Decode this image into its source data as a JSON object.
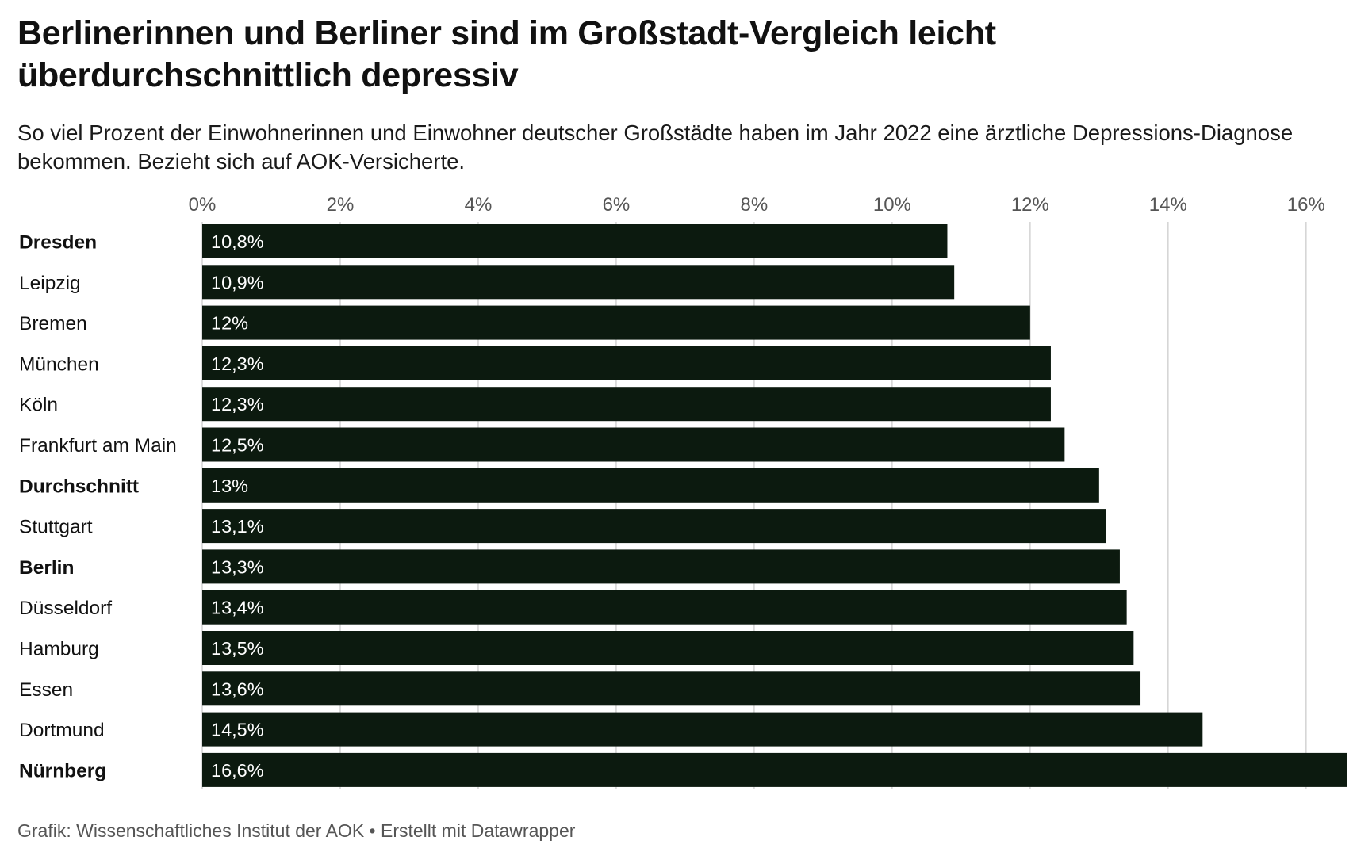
{
  "header": {
    "title": "Berlinerinnen und Berliner sind im Großstadt-Vergleich leicht überdurchschnittlich depressiv",
    "subtitle": "So viel Prozent der Einwohnerinnen und Einwohner deutscher Großstädte haben im Jahr 2022 eine ärztliche Depressions-Diagnose bekommen. Bezieht sich auf AOK-Versicherte."
  },
  "footer": {
    "source": "Grafik: Wissenschaftliches Institut der AOK • Erstellt mit Datawrapper"
  },
  "colors": {
    "bar": "#0c1a0f",
    "grid": "#d3d3d3",
    "value_label": "#ffffff"
  },
  "chart_data": {
    "type": "bar",
    "orientation": "horizontal",
    "categories": [
      "Dresden",
      "Leipzig",
      "Bremen",
      "München",
      "Köln",
      "Frankfurt am Main",
      "Durchschnitt",
      "Stuttgart",
      "Berlin",
      "Düsseldorf",
      "Hamburg",
      "Essen",
      "Dortmund",
      "Nürnberg"
    ],
    "bold_categories": [
      "Dresden",
      "Durchschnitt",
      "Berlin",
      "Nürnberg"
    ],
    "values": [
      10.8,
      10.9,
      12,
      12.3,
      12.3,
      12.5,
      13,
      13.1,
      13.3,
      13.4,
      13.5,
      13.6,
      14.5,
      16.6
    ],
    "value_labels": [
      "10,8%",
      "10,9%",
      "12%",
      "12,3%",
      "12,3%",
      "12,5%",
      "13%",
      "13,1%",
      "13,3%",
      "13,4%",
      "13,5%",
      "13,6%",
      "14,5%",
      "16,6%"
    ],
    "x_ticks": [
      0,
      2,
      4,
      6,
      8,
      10,
      12,
      14,
      16
    ],
    "x_tick_labels": [
      "0%",
      "2%",
      "4%",
      "6%",
      "8%",
      "10%",
      "12%",
      "14%",
      "16%"
    ],
    "xlim": [
      0,
      16.6
    ],
    "grid": true,
    "axis_position": "top"
  }
}
